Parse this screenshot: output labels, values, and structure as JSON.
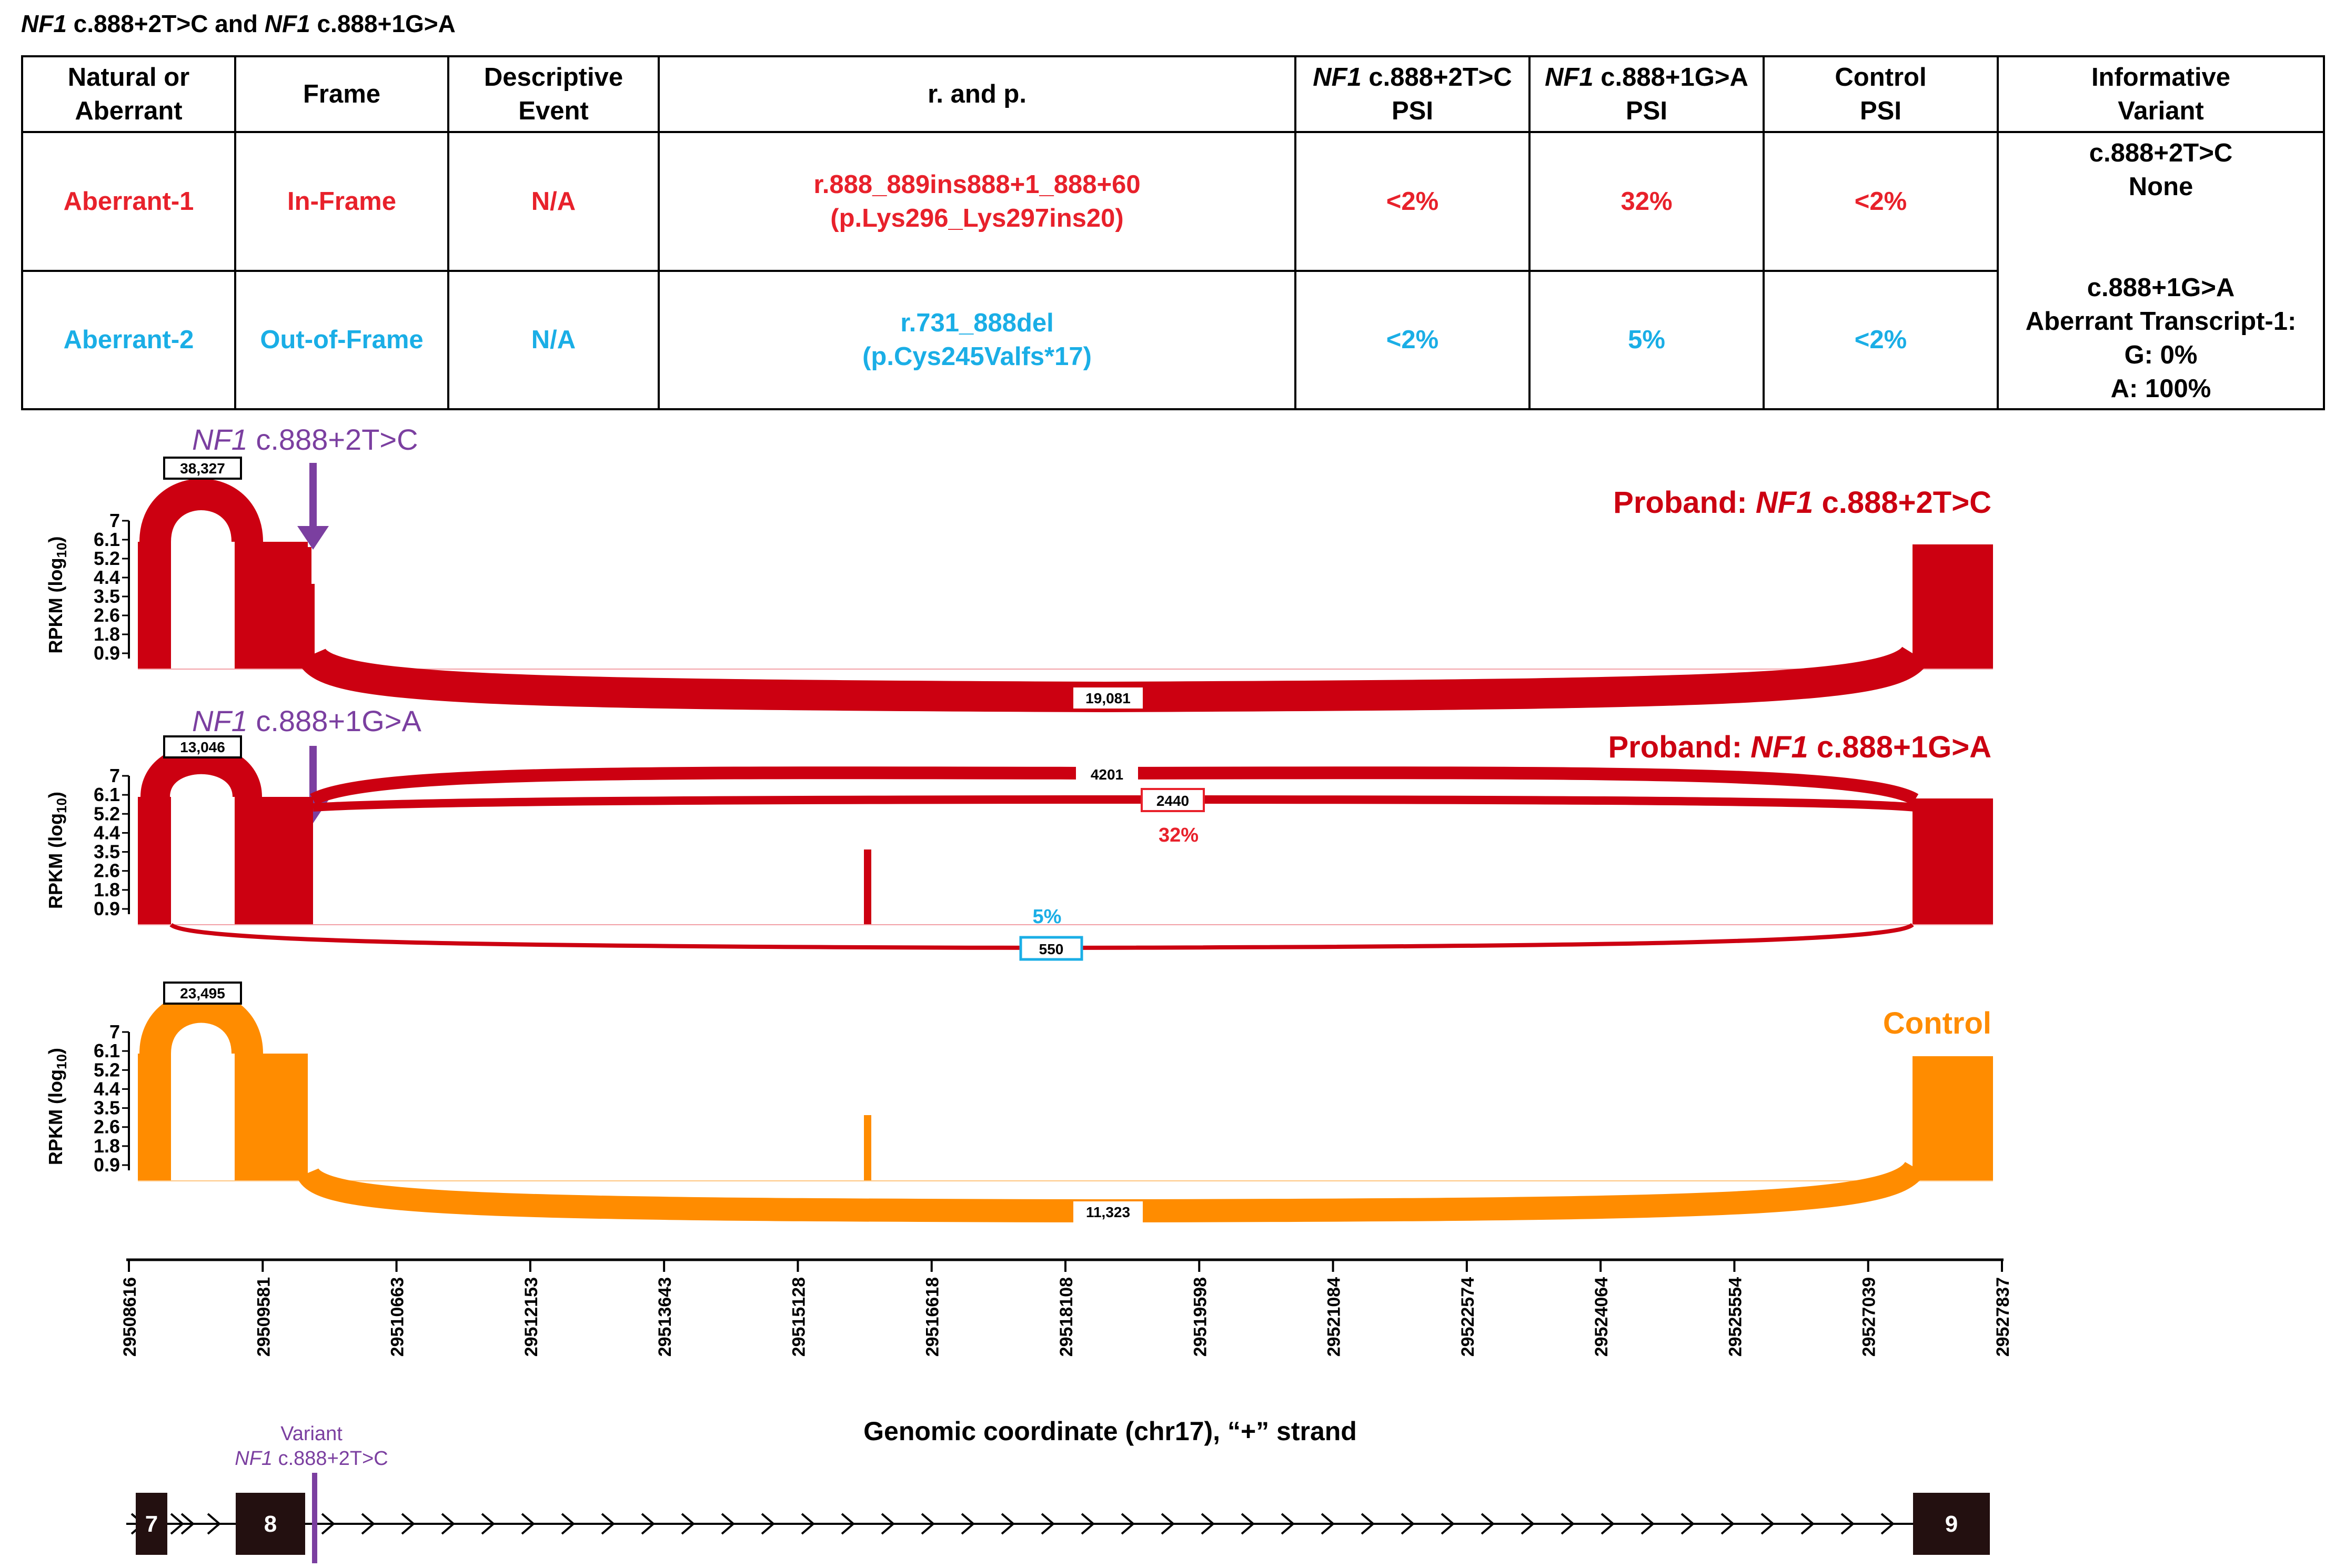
{
  "figure_title": {
    "gene": "NF1",
    "part1": " c.888+2T>C  and ",
    "gene2": "NF1",
    "part2": " c.888+1G>A"
  },
  "table": {
    "headers": {
      "natural": "Natural or\nAberrant",
      "frame": "Frame",
      "event": "Descriptive\nEvent",
      "rp": "r. and p.",
      "psi1_gene": "NF1",
      "psi1_rest": " c.888+2T>C",
      "psi1_line2": "PSI",
      "psi2_gene": "NF1",
      "psi2_rest": " c.888+1G>A",
      "psi2_line2": "PSI",
      "control": "Control\nPSI",
      "informative": "Informative\nVariant"
    },
    "rows": [
      {
        "name": "Aberrant-1",
        "frame": "In-Frame",
        "event": "N/A",
        "rp": "r.888_889ins888+1_888+60\n(p.Lys296_Lys297ins20)",
        "psi1": "<2%",
        "psi2": "32%",
        "control": "<2%",
        "color": "#e8212b"
      },
      {
        "name": "Aberrant-2",
        "frame": "Out-of-Frame",
        "event": "N/A",
        "rp": "r.731_888del\n(p.Cys245Valfs*17)",
        "psi1": "<2%",
        "psi2": "5%",
        "control": "<2%",
        "color": "#1aaee6"
      }
    ],
    "informative": "c.888+2T>C\nNone\n\n\nc.888+1G>A\nAberrant Transcript-1:\nG: 0%\nA: 100%"
  },
  "panels": {
    "p1": {
      "title_pre": "Proband: ",
      "title_gene": "NF1",
      "title_post": " c.888+2T>C",
      "variant_gene": "NF1",
      "variant_rest": " c.888+2T>C",
      "junction_left": "38,327",
      "junction_main": "19,081",
      "color": "#cc0011"
    },
    "p2": {
      "title_pre": "Proband: ",
      "title_gene": "NF1",
      "title_post": " c.888+1G>A",
      "variant_gene": "NF1",
      "variant_rest": " c.888+1G>A",
      "junction_left": "13,046",
      "junction_top": "4201",
      "junction_mid": "2440",
      "mid_pct": "32%",
      "junction_bottom": "550",
      "bottom_pct": "5%",
      "color": "#cc0011"
    },
    "p3": {
      "title": "Control",
      "junction_left": "23,495",
      "junction_main": "11,323",
      "color": "#ff8c00"
    }
  },
  "y_axis": {
    "label": "RPKM (log",
    "label_sub": "10",
    "label_end": ")",
    "ticks": [
      "7",
      "6.1",
      "5.2",
      "4.4",
      "3.5",
      "2.6",
      "1.8",
      "0.9"
    ]
  },
  "x_axis": {
    "ticks": [
      "29508616",
      "29509581",
      "29510663",
      "29512153",
      "29513643",
      "29515128",
      "29516618",
      "29518108",
      "29519598",
      "29521084",
      "29522574",
      "29524064",
      "29525554",
      "29527039",
      "29527837"
    ],
    "label": "Genomic coordinate (chr17), “+” strand"
  },
  "gene_model": {
    "variant_label": "Variant",
    "variant_gene": "NF1",
    "variant_rest": " c.888+2T>C",
    "exons": [
      "7",
      "8",
      "9"
    ]
  },
  "colors": {
    "red_text": "#e8212b",
    "blue_text": "#1aaee6",
    "track_red": "#cc0011",
    "track_orange": "#ff8c00",
    "variant_purple": "#7b3fa0"
  }
}
